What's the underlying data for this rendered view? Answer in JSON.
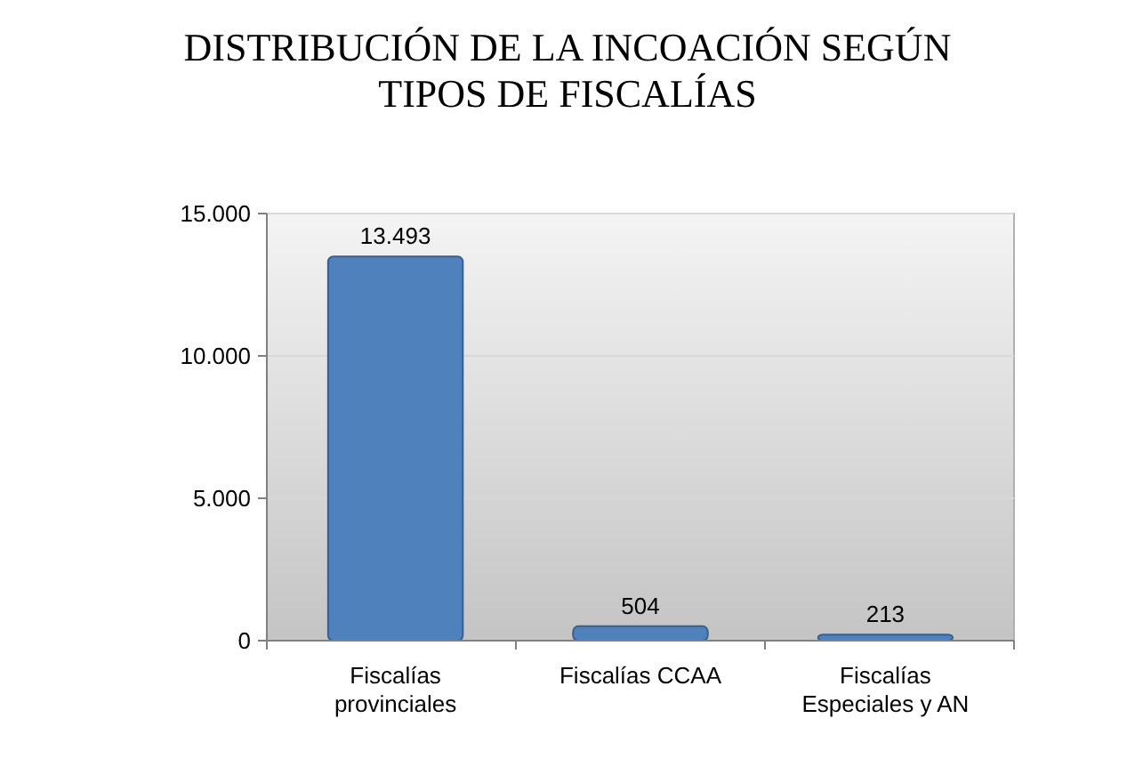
{
  "chart_data": {
    "type": "bar",
    "title": "DISTRIBUCIÓN DE LA INCOACIÓN SEGÚN TIPOS DE FISCALÍAS",
    "categories": [
      "Fiscalías provinciales",
      "Fiscalías CCAA",
      "Fiscalías Especiales y AN"
    ],
    "values": [
      13493,
      504,
      213
    ],
    "value_labels": [
      "13.493",
      "504",
      "213"
    ],
    "color": "#4f81bd",
    "ylim": [
      0,
      15000
    ],
    "yticks": [
      {
        "value": 0,
        "label": "0"
      },
      {
        "value": 5000,
        "label": "5.000"
      },
      {
        "value": 10000,
        "label": "10.000"
      },
      {
        "value": 15000,
        "label": "15.000"
      }
    ],
    "grid": "y"
  }
}
